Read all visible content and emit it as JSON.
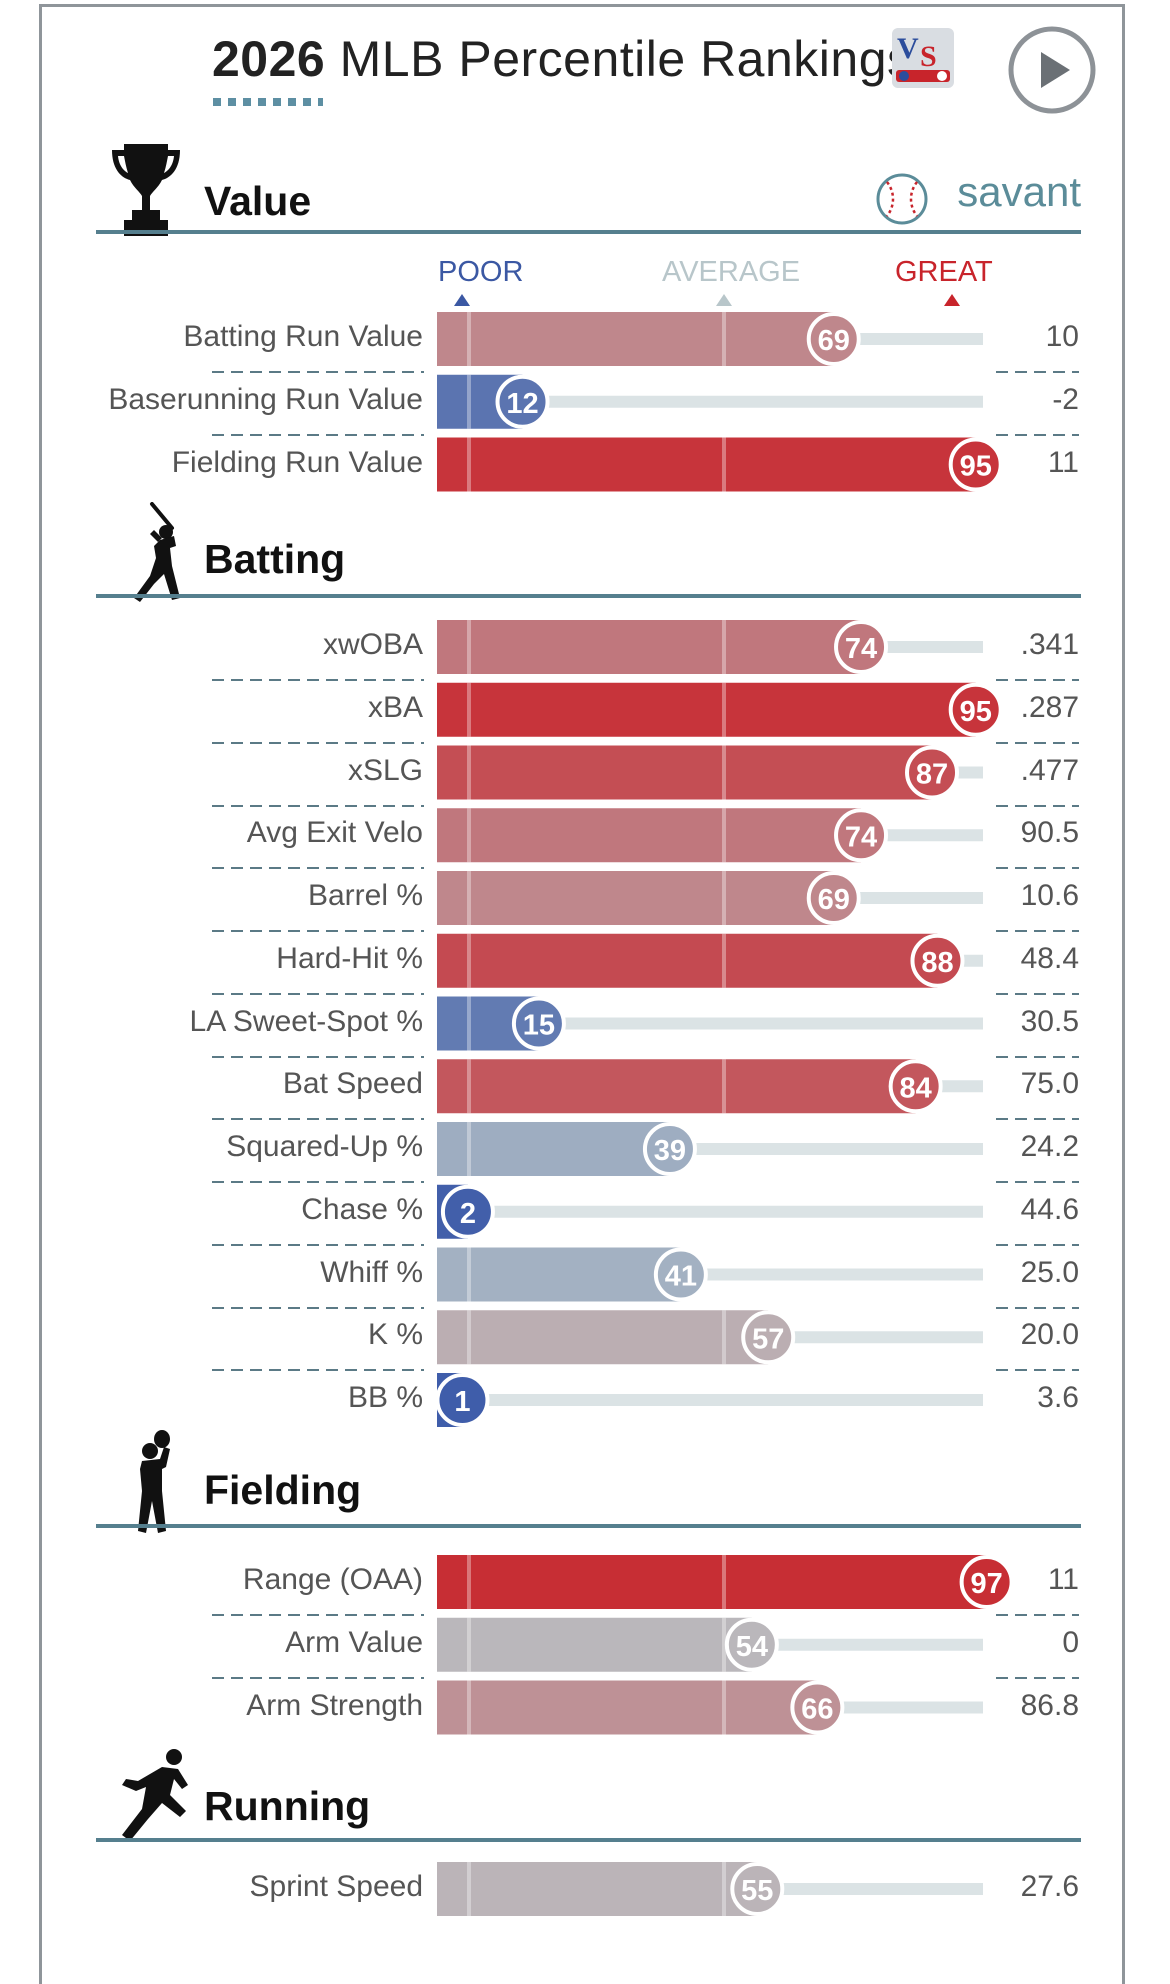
{
  "header": {
    "title_year": "2026",
    "title_rest": "MLB Percentile Rankings",
    "play_icon": "play-circle-icon",
    "logo_icon": "vs-logo-icon"
  },
  "brand": {
    "savant_label": "savant",
    "savant_icon": "baseball-icon"
  },
  "scale": {
    "poor": "POOR",
    "average": "AVERAGE",
    "great": "GREAT"
  },
  "colors": {
    "poor": "#3d5ba9",
    "great": "#c8242b",
    "average": "#b9c4c8",
    "section_line": "#557f8e"
  },
  "sections": [
    {
      "title": "Value",
      "icon": "trophy-icon"
    },
    {
      "title": "Batting",
      "icon": "batter-icon"
    },
    {
      "title": "Fielding",
      "icon": "fielder-icon"
    },
    {
      "title": "Running",
      "icon": "runner-icon"
    }
  ],
  "chart_data": {
    "type": "bar",
    "xlim": [
      0,
      100
    ],
    "groups": [
      {
        "section": "Value",
        "metrics": [
          {
            "label": "Batting Run Value",
            "percentile": 69,
            "value": "10"
          },
          {
            "label": "Baserunning Run Value",
            "percentile": 12,
            "value": "-2"
          },
          {
            "label": "Fielding Run Value",
            "percentile": 95,
            "value": "11"
          }
        ]
      },
      {
        "section": "Batting",
        "metrics": [
          {
            "label": "xwOBA",
            "percentile": 74,
            "value": ".341"
          },
          {
            "label": "xBA",
            "percentile": 95,
            "value": ".287"
          },
          {
            "label": "xSLG",
            "percentile": 87,
            "value": ".477"
          },
          {
            "label": "Avg Exit Velo",
            "percentile": 74,
            "value": "90.5"
          },
          {
            "label": "Barrel %",
            "percentile": 69,
            "value": "10.6"
          },
          {
            "label": "Hard-Hit %",
            "percentile": 88,
            "value": "48.4"
          },
          {
            "label": "LA Sweet-Spot %",
            "percentile": 15,
            "value": "30.5"
          },
          {
            "label": "Bat Speed",
            "percentile": 84,
            "value": "75.0"
          },
          {
            "label": "Squared-Up %",
            "percentile": 39,
            "value": "24.2"
          },
          {
            "label": "Chase %",
            "percentile": 2,
            "value": "44.6"
          },
          {
            "label": "Whiff %",
            "percentile": 41,
            "value": "25.0"
          },
          {
            "label": "K %",
            "percentile": 57,
            "value": "20.0"
          },
          {
            "label": "BB %",
            "percentile": 1,
            "value": "3.6"
          }
        ]
      },
      {
        "section": "Fielding",
        "metrics": [
          {
            "label": "Range (OAA)",
            "percentile": 97,
            "value": "11"
          },
          {
            "label": "Arm Value",
            "percentile": 54,
            "value": "0"
          },
          {
            "label": "Arm Strength",
            "percentile": 66,
            "value": "86.8"
          }
        ]
      },
      {
        "section": "Running",
        "metrics": [
          {
            "label": "Sprint Speed",
            "percentile": 55,
            "value": "27.6"
          }
        ]
      }
    ]
  }
}
